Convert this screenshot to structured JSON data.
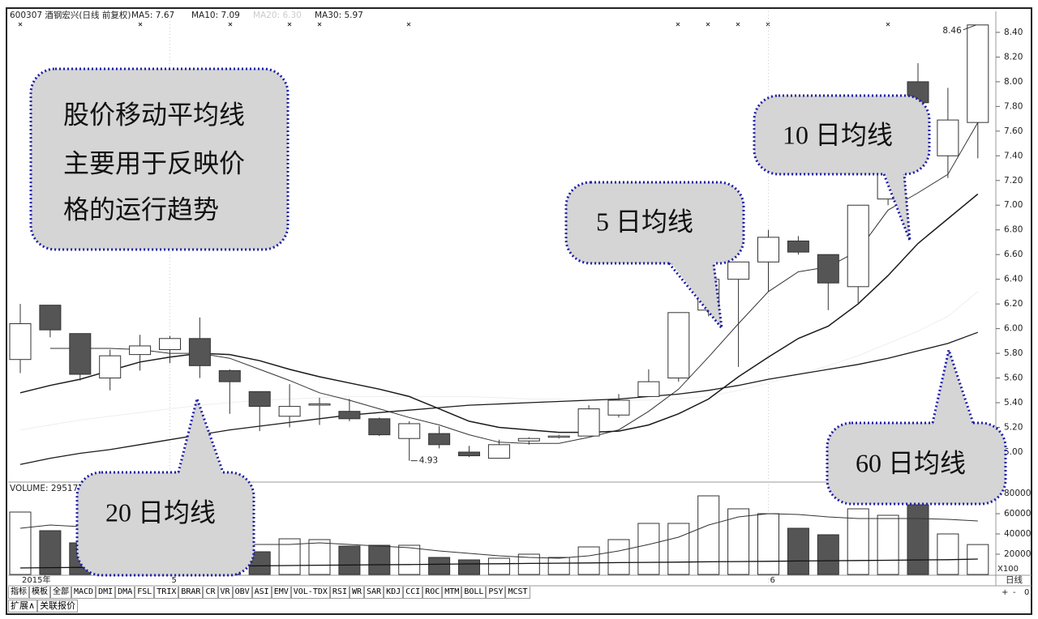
{
  "chart_data": {
    "type": "candlestick",
    "title": "600307 酒钢宏兴(日线 前复权)",
    "ma_labels": [
      {
        "text": "MA5: 7.67",
        "color": "#222"
      },
      {
        "text": "MA10: 7.09",
        "color": "#222"
      },
      {
        "text": "MA20: 6.30",
        "color": "#ccc"
      },
      {
        "text": "MA30: 5.97",
        "color": "#222"
      }
    ],
    "ylim": [
      4.757,
      8.544
    ],
    "yticks": [
      {
        "value": 5.0,
        "label": "5.00"
      },
      {
        "value": 5.2,
        "label": "5.20"
      },
      {
        "value": 5.4,
        "label": "5.40"
      },
      {
        "value": 5.6,
        "label": "5.60"
      },
      {
        "value": 5.8,
        "label": "5.80"
      },
      {
        "value": 6.0,
        "label": "6.00"
      },
      {
        "value": 6.2,
        "label": "6.20"
      },
      {
        "value": 6.4,
        "label": "6.40"
      },
      {
        "value": 6.6,
        "label": "6.60"
      },
      {
        "value": 6.8,
        "label": "6.80"
      },
      {
        "value": 7.0,
        "label": "7.00"
      },
      {
        "value": 7.2,
        "label": "7.20"
      },
      {
        "value": 7.4,
        "label": "7.40"
      },
      {
        "value": 7.6,
        "label": "7.60"
      },
      {
        "value": 7.8,
        "label": "7.80"
      },
      {
        "value": 8.0,
        "label": "8.00"
      },
      {
        "value": 8.2,
        "label": "8.20"
      },
      {
        "value": 8.4,
        "label": "8.40"
      }
    ],
    "up_color": "#ffffff",
    "down_color": "#555555",
    "edge_color": "#333333",
    "candles": [
      {
        "open": 5.75,
        "close": 6.04,
        "high": 6.2,
        "low": 5.64
      },
      {
        "open": 6.19,
        "close": 5.99,
        "high": 6.19,
        "low": 5.93
      },
      {
        "open": 5.96,
        "close": 5.63,
        "high": 5.96,
        "low": 5.58
      },
      {
        "open": 5.6,
        "close": 5.78,
        "high": 5.83,
        "low": 5.5
      },
      {
        "open": 5.79,
        "close": 5.86,
        "high": 5.95,
        "low": 5.66
      },
      {
        "open": 5.83,
        "close": 5.92,
        "high": 5.94,
        "low": 5.72
      },
      {
        "open": 5.92,
        "close": 5.7,
        "high": 6.09,
        "low": 5.6
      },
      {
        "open": 5.66,
        "close": 5.57,
        "high": 5.67,
        "low": 5.31
      },
      {
        "open": 5.49,
        "close": 5.37,
        "high": 5.49,
        "low": 5.17
      },
      {
        "open": 5.29,
        "close": 5.37,
        "high": 5.55,
        "low": 5.2
      },
      {
        "open": 5.38,
        "close": 5.39,
        "high": 5.44,
        "low": 5.22
      },
      {
        "open": 5.33,
        "close": 5.27,
        "high": 5.43,
        "low": 5.25
      },
      {
        "open": 5.27,
        "close": 5.14,
        "high": 5.28,
        "low": 5.13
      },
      {
        "open": 5.11,
        "close": 5.23,
        "high": 5.25,
        "low": 4.93
      },
      {
        "open": 5.15,
        "close": 5.06,
        "high": 5.21,
        "low": 5.03
      },
      {
        "open": 5.0,
        "close": 4.97,
        "high": 5.05,
        "low": 4.96
      },
      {
        "open": 4.95,
        "close": 5.06,
        "high": 5.1,
        "low": 4.95
      },
      {
        "open": 5.09,
        "close": 5.11,
        "high": 5.12,
        "low": 5.06
      },
      {
        "open": 5.12,
        "close": 5.13,
        "high": 5.14,
        "low": 5.11
      },
      {
        "open": 5.13,
        "close": 5.35,
        "high": 5.38,
        "low": 5.13
      },
      {
        "open": 5.3,
        "close": 5.42,
        "high": 5.47,
        "low": 5.28
      },
      {
        "open": 5.45,
        "close": 5.57,
        "high": 5.67,
        "low": 5.45
      },
      {
        "open": 5.6,
        "close": 6.13,
        "high": 6.13,
        "low": 5.57
      },
      {
        "open": 6.15,
        "close": 6.4,
        "high": 6.45,
        "low": 6.1
      },
      {
        "open": 6.4,
        "close": 6.54,
        "high": 6.54,
        "low": 5.69
      },
      {
        "open": 6.54,
        "close": 6.74,
        "high": 6.8,
        "low": 6.3
      },
      {
        "open": 6.71,
        "close": 6.62,
        "high": 6.75,
        "low": 6.6
      },
      {
        "open": 6.6,
        "close": 6.37,
        "high": 6.6,
        "low": 6.15
      },
      {
        "open": 6.34,
        "close": 7.0,
        "high": 7.0,
        "low": 6.2
      },
      {
        "open": 7.05,
        "close": 7.45,
        "high": 7.6,
        "low": 7.0
      },
      {
        "open": 8.0,
        "close": 7.83,
        "high": 8.15,
        "low": 7.75
      },
      {
        "open": 7.4,
        "close": 7.69,
        "high": 7.95,
        "low": 7.22
      },
      {
        "open": 7.67,
        "close": 8.46,
        "high": 8.46,
        "low": 7.38
      }
    ],
    "lines": [
      {
        "color": "#eeeeee",
        "width": 1,
        "values": [
          5.18,
          5.22,
          5.26,
          5.29,
          5.32,
          5.35,
          5.38,
          5.4,
          5.42,
          5.43,
          5.44,
          5.45,
          5.45,
          5.45,
          5.45,
          5.45,
          5.44,
          5.43,
          5.43,
          5.42,
          5.42,
          5.42,
          5.43,
          5.45,
          5.5,
          5.56,
          5.63,
          5.7,
          5.78,
          5.88,
          5.98,
          6.1,
          6.3
        ]
      },
      {
        "color": "#333333",
        "width": 1,
        "values": [
          null,
          5.84,
          5.84,
          5.84,
          5.83,
          5.8,
          5.8,
          5.76,
          5.67,
          5.58,
          5.48,
          5.42,
          5.35,
          5.28,
          5.22,
          5.14,
          5.08,
          5.07,
          5.07,
          5.12,
          5.18,
          5.33,
          5.51,
          5.77,
          6.04,
          6.3,
          6.46,
          6.5,
          6.63,
          6.96,
          7.1,
          7.25,
          7.67
        ]
      },
      {
        "color": "#1a1a1a",
        "width": 1.5,
        "values": [
          5.48,
          5.54,
          5.59,
          5.66,
          5.73,
          5.77,
          5.8,
          5.79,
          5.74,
          5.67,
          5.61,
          5.56,
          5.51,
          5.45,
          5.35,
          5.25,
          5.2,
          5.18,
          5.16,
          5.16,
          5.17,
          5.22,
          5.31,
          5.43,
          5.61,
          5.77,
          5.92,
          6.02,
          6.2,
          6.43,
          6.69,
          6.89,
          7.09
        ]
      },
      {
        "color": "#1a1a1a",
        "width": 1.3,
        "values": [
          4.9,
          4.95,
          4.99,
          5.02,
          5.06,
          5.1,
          5.14,
          5.18,
          5.21,
          5.24,
          5.27,
          5.3,
          5.32,
          5.34,
          5.36,
          5.38,
          5.39,
          5.4,
          5.41,
          5.42,
          5.43,
          5.45,
          5.47,
          5.5,
          5.54,
          5.59,
          5.63,
          5.67,
          5.71,
          5.76,
          5.82,
          5.88,
          5.97
        ]
      }
    ],
    "annotations": [
      {
        "text": "8.46",
        "index": 32
      },
      {
        "text": "4.93",
        "index": 13
      }
    ],
    "x_labels": [
      {
        "value": 0,
        "label": "2015年"
      },
      {
        "value": 5,
        "label": "5"
      },
      {
        "value": 25,
        "label": "6"
      }
    ],
    "volume": {
      "label": "VOLUME: 29517",
      "unit": "X100",
      "ylim": [
        0,
        89600
      ],
      "yticks": [
        20000,
        40000,
        60000,
        80000
      ],
      "values": [
        61600,
        43200,
        31200,
        20000,
        18000,
        16000,
        24000,
        24000,
        22400,
        35200,
        34400,
        28000,
        28800,
        28800,
        16800,
        14400,
        16000,
        20000,
        16800,
        27200,
        34400,
        50400,
        50400,
        77600,
        64800,
        60000,
        45600,
        39200,
        64800,
        58400,
        68800,
        40000,
        29517
      ],
      "lines": [
        {
          "color": "#333333",
          "width": 1,
          "values": [
            45600,
            48800,
            47200,
            43200,
            39200,
            35200,
            31200,
            29600,
            29600,
            29600,
            31200,
            29600,
            28000,
            26400,
            23200,
            20800,
            18400,
            16800,
            16000,
            18400,
            23200,
            29600,
            36800,
            48800,
            56800,
            60000,
            59200,
            56800,
            55200,
            55200,
            55200,
            54400,
            52800
          ]
        },
        {
          "color": "#111111",
          "width": 1.3,
          "values": [
            6400,
            6700,
            7000,
            7200,
            7500,
            7800,
            8000,
            8300,
            8500,
            8800,
            9100,
            9300,
            9600,
            9800,
            10100,
            10400,
            10600,
            10900,
            11100,
            11400,
            11700,
            11900,
            12200,
            12500,
            12700,
            13000,
            13300,
            13500,
            13800,
            14000,
            14300,
            14600,
            15200
          ]
        }
      ]
    },
    "callouts": [
      {
        "lines": [
          "股价移动平均线",
          "主要用于反映价",
          "格的运行趋势"
        ]
      },
      {
        "lines": [
          "5 日均线"
        ]
      },
      {
        "lines": [
          "10 日均线"
        ]
      },
      {
        "lines": [
          "20 日均线"
        ]
      },
      {
        "lines": [
          "60 日均线"
        ]
      }
    ]
  },
  "ui": {
    "tabs": [
      "指标",
      "模板",
      "全部",
      "MACD",
      "DMI",
      "DMA",
      "FSL",
      "TRIX",
      "BRAR",
      "CR",
      "VR",
      "OBV",
      "ASI",
      "EMV",
      "VOL-TDX",
      "RSI",
      "WR",
      "SAR",
      "KDJ",
      "CCI",
      "ROC",
      "MTM",
      "BOLL",
      "PSY",
      "MCST"
    ],
    "tabs2": [
      "扩展∧",
      "关联报价"
    ],
    "period": "日线",
    "zoom": [
      "+",
      "-",
      "0"
    ]
  }
}
